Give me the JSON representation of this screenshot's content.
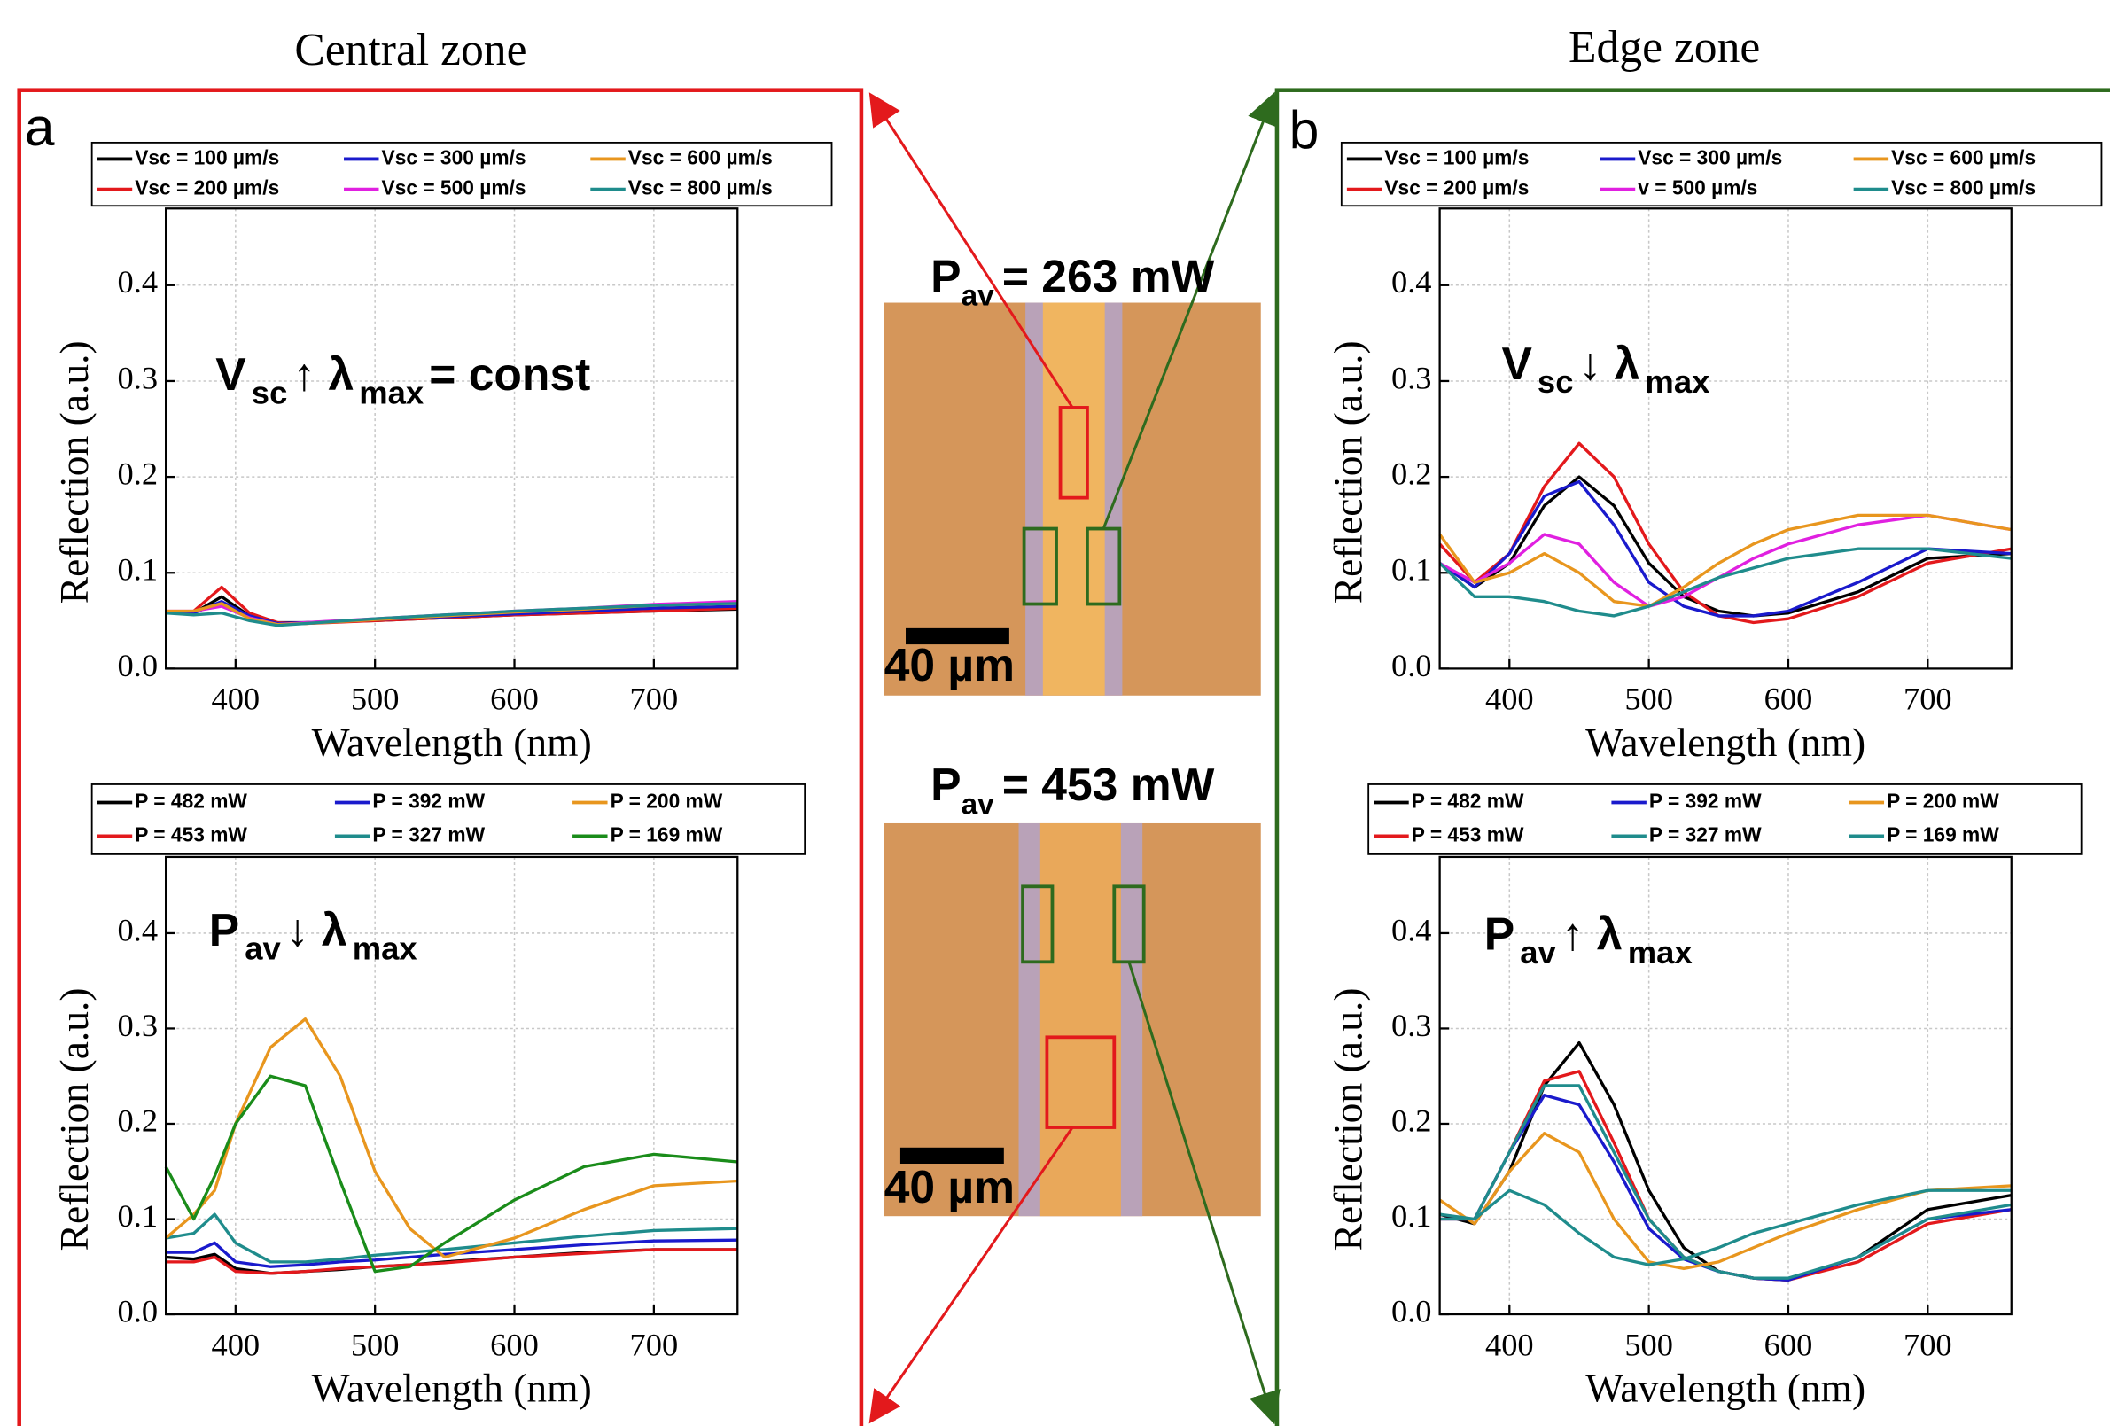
{
  "zone_titles": [
    "Central zone",
    "Edge zone"
  ],
  "micrographs": [
    {
      "power": [
        "P",
        "av",
        "= 263 mW"
      ],
      "scale_bar": "40 µm"
    },
    {
      "power": [
        "P",
        "av",
        "= 453 mW"
      ],
      "scale_bar": "40 µm"
    }
  ],
  "chart_data": [
    {
      "type": "line",
      "panel_label": "a",
      "xlabel": "Wavelength (nm)",
      "ylabel": "Reflection (a.u.)",
      "annotation": [
        "V",
        "sc",
        "↑ λ",
        "max",
        "= const"
      ],
      "xlim": [
        350,
        760
      ],
      "ylim": [
        0,
        0.48
      ],
      "xticks": [
        400,
        500,
        600,
        700
      ],
      "yticks": [
        {
          "value": 0,
          "label": "0.0"
        },
        0.1,
        0.2,
        0.3,
        0.4
      ],
      "grid": true,
      "x": [
        350,
        370,
        390,
        410,
        430,
        450,
        500,
        550,
        600,
        650,
        700,
        760
      ],
      "series": [
        {
          "name": "Vsc = 100 µm/s",
          "color": "#000000",
          "values": [
            0.06,
            0.058,
            0.075,
            0.055,
            0.048,
            0.048,
            0.05,
            0.053,
            0.056,
            0.058,
            0.06,
            0.062
          ]
        },
        {
          "name": "Vsc = 200 µm/s",
          "color": "#e3191c",
          "values": [
            0.058,
            0.06,
            0.085,
            0.058,
            0.048,
            0.047,
            0.05,
            0.053,
            0.056,
            0.058,
            0.06,
            0.063
          ]
        },
        {
          "name": "Vsc = 300 µm/s",
          "color": "#1a1acc",
          "values": [
            0.06,
            0.058,
            0.07,
            0.055,
            0.047,
            0.048,
            0.051,
            0.054,
            0.057,
            0.06,
            0.063,
            0.065
          ]
        },
        {
          "name": "Vsc = 500 µm/s",
          "color": "#e020e0",
          "values": [
            0.06,
            0.06,
            0.065,
            0.053,
            0.046,
            0.048,
            0.052,
            0.056,
            0.06,
            0.063,
            0.067,
            0.07
          ]
        },
        {
          "name": "Vsc = 600 µm/s",
          "color": "#e8961e",
          "values": [
            0.06,
            0.06,
            0.068,
            0.052,
            0.046,
            0.047,
            0.051,
            0.055,
            0.059,
            0.062,
            0.066,
            0.068
          ]
        },
        {
          "name": "Vsc = 800 µm/s",
          "color": "#1f8c8c",
          "values": [
            0.058,
            0.056,
            0.058,
            0.05,
            0.045,
            0.047,
            0.052,
            0.056,
            0.06,
            0.063,
            0.066,
            0.068
          ]
        }
      ]
    },
    {
      "type": "line",
      "panel_label": "b",
      "xlabel": "Wavelength (nm)",
      "ylabel": "Reflection (a.u.)",
      "annotation": [
        "V",
        "sc",
        "↓     λ",
        "max"
      ],
      "xlim": [
        350,
        760
      ],
      "ylim": [
        0,
        0.48
      ],
      "xticks": [
        400,
        500,
        600,
        700
      ],
      "yticks": [
        {
          "value": 0,
          "label": "0.0"
        },
        0.1,
        0.2,
        0.3,
        0.4
      ],
      "grid": true,
      "x": [
        350,
        375,
        400,
        425,
        450,
        475,
        500,
        525,
        550,
        575,
        600,
        650,
        700,
        760
      ],
      "series": [
        {
          "name": "Vsc = 100 µm/s",
          "color": "#000000",
          "values": [
            0.11,
            0.085,
            0.11,
            0.17,
            0.2,
            0.17,
            0.11,
            0.075,
            0.06,
            0.055,
            0.058,
            0.08,
            0.115,
            0.12
          ]
        },
        {
          "name": "Vsc = 200 µm/s",
          "color": "#e3191c",
          "values": [
            0.13,
            0.09,
            0.12,
            0.19,
            0.235,
            0.2,
            0.13,
            0.08,
            0.055,
            0.048,
            0.052,
            0.075,
            0.11,
            0.125
          ]
        },
        {
          "name": "Vsc = 300 µm/s",
          "color": "#1a1acc",
          "values": [
            0.11,
            0.085,
            0.12,
            0.18,
            0.195,
            0.15,
            0.09,
            0.065,
            0.055,
            0.055,
            0.06,
            0.09,
            0.125,
            0.12
          ]
        },
        {
          "name": "v = 500 µm/s",
          "color": "#e020e0",
          "values": [
            0.11,
            0.09,
            0.11,
            0.14,
            0.13,
            0.09,
            0.065,
            0.075,
            0.095,
            0.115,
            0.13,
            0.15,
            0.16,
            0.145
          ]
        },
        {
          "name": "Vsc = 600 µm/s",
          "color": "#e8961e",
          "values": [
            0.14,
            0.09,
            0.1,
            0.12,
            0.1,
            0.07,
            0.065,
            0.085,
            0.11,
            0.13,
            0.145,
            0.16,
            0.16,
            0.145
          ]
        },
        {
          "name": "Vsc = 800 µm/s",
          "color": "#1f8c8c",
          "values": [
            0.11,
            0.075,
            0.075,
            0.07,
            0.06,
            0.055,
            0.065,
            0.08,
            0.095,
            0.105,
            0.115,
            0.125,
            0.125,
            0.115
          ]
        }
      ]
    },
    {
      "type": "line",
      "xlabel": "Wavelength (nm)",
      "ylabel": "Reflection (a.u.)",
      "annotation": [
        "P",
        "av",
        "↓  λ",
        "max"
      ],
      "xlim": [
        350,
        760
      ],
      "ylim": [
        0,
        0.48
      ],
      "xticks": [
        400,
        500,
        600,
        700
      ],
      "yticks": [
        {
          "value": 0,
          "label": "0.0"
        },
        0.1,
        0.2,
        0.3,
        0.4
      ],
      "grid": true,
      "x": [
        350,
        370,
        385,
        400,
        425,
        450,
        475,
        500,
        525,
        550,
        600,
        650,
        700,
        760
      ],
      "series": [
        {
          "name": "P = 482 mW",
          "color": "#000000",
          "values": [
            0.06,
            0.058,
            0.063,
            0.048,
            0.043,
            0.045,
            0.047,
            0.05,
            0.052,
            0.055,
            0.06,
            0.065,
            0.068,
            0.068
          ]
        },
        {
          "name": "P = 453 mW",
          "color": "#e3191c",
          "values": [
            0.055,
            0.055,
            0.06,
            0.045,
            0.043,
            0.045,
            0.048,
            0.05,
            0.052,
            0.054,
            0.06,
            0.064,
            0.068,
            0.068
          ]
        },
        {
          "name": "P = 392 mW",
          "color": "#1a1acc",
          "values": [
            0.065,
            0.065,
            0.075,
            0.055,
            0.05,
            0.052,
            0.055,
            0.057,
            0.06,
            0.063,
            0.068,
            0.073,
            0.077,
            0.078
          ]
        },
        {
          "name": "P = 327 mW",
          "color": "#1f8c8c",
          "values": [
            0.08,
            0.085,
            0.105,
            0.075,
            0.055,
            0.055,
            0.058,
            0.062,
            0.065,
            0.068,
            0.075,
            0.082,
            0.088,
            0.09
          ]
        },
        {
          "name": "P = 200 mW",
          "color": "#e8961e",
          "values": [
            0.08,
            0.105,
            0.13,
            0.2,
            0.28,
            0.31,
            0.25,
            0.15,
            0.09,
            0.06,
            0.08,
            0.11,
            0.135,
            0.14
          ]
        },
        {
          "name": "P = 169 mW",
          "color": "#1a8c1a",
          "values": [
            0.155,
            0.1,
            0.145,
            0.2,
            0.25,
            0.24,
            0.14,
            0.045,
            0.05,
            0.075,
            0.12,
            0.155,
            0.168,
            0.16
          ]
        }
      ]
    },
    {
      "type": "line",
      "xlabel": "Wavelength (nm)",
      "ylabel": "Reflection (a.u.)",
      "annotation": [
        "P",
        "av",
        "↑  λ",
        "max"
      ],
      "xlim": [
        350,
        760
      ],
      "ylim": [
        0,
        0.48
      ],
      "xticks": [
        400,
        500,
        600,
        700
      ],
      "yticks": [
        {
          "value": 0,
          "label": "0.0"
        },
        0.1,
        0.2,
        0.3,
        0.4
      ],
      "grid": true,
      "x": [
        350,
        375,
        400,
        425,
        450,
        475,
        500,
        525,
        550,
        575,
        600,
        650,
        700,
        760
      ],
      "series": [
        {
          "name": "P = 482 mW",
          "color": "#000000",
          "values": [
            0.105,
            0.095,
            0.15,
            0.24,
            0.285,
            0.22,
            0.13,
            0.07,
            0.045,
            0.038,
            0.036,
            0.06,
            0.11,
            0.125
          ]
        },
        {
          "name": "P = 453 mW",
          "color": "#e3191c",
          "values": [
            0.1,
            0.1,
            0.17,
            0.245,
            0.255,
            0.18,
            0.1,
            0.06,
            0.045,
            0.038,
            0.036,
            0.055,
            0.095,
            0.11
          ]
        },
        {
          "name": "P = 392 mW",
          "color": "#1a1acc",
          "values": [
            0.1,
            0.1,
            0.17,
            0.23,
            0.22,
            0.16,
            0.09,
            0.058,
            0.045,
            0.038,
            0.036,
            0.06,
            0.1,
            0.11
          ]
        },
        {
          "name": "P = 327 mW",
          "color": "#1f8c8c",
          "values": [
            0.1,
            0.1,
            0.17,
            0.24,
            0.24,
            0.17,
            0.1,
            0.06,
            0.045,
            0.038,
            0.038,
            0.06,
            0.1,
            0.115
          ]
        },
        {
          "name": "P = 200 mW",
          "color": "#e8961e",
          "values": [
            0.12,
            0.095,
            0.15,
            0.19,
            0.17,
            0.1,
            0.055,
            0.048,
            0.055,
            0.07,
            0.085,
            0.11,
            0.13,
            0.135
          ]
        },
        {
          "name": "P = 169 mW",
          "color": "#1f8c8c",
          "values": [
            0.105,
            0.1,
            0.13,
            0.115,
            0.085,
            0.06,
            0.052,
            0.058,
            0.07,
            0.085,
            0.095,
            0.115,
            0.13,
            0.13
          ]
        }
      ]
    }
  ]
}
